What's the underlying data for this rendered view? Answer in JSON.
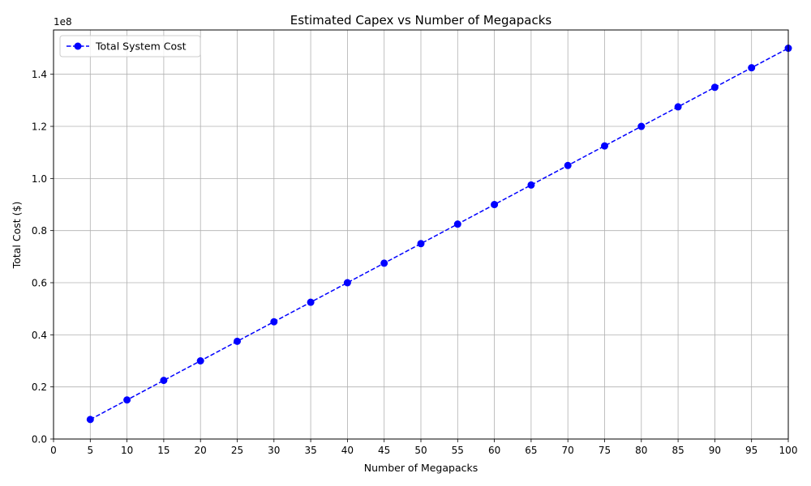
{
  "chart_data": {
    "type": "line",
    "title": "Estimated Capex vs Number of Megapacks",
    "xlabel": "Number of Megapacks",
    "ylabel": "Total Cost ($)",
    "y_offset_label": "1e8",
    "xlim": [
      0,
      100
    ],
    "ylim": [
      0,
      157000000
    ],
    "x_ticks": [
      0,
      5,
      10,
      15,
      20,
      25,
      30,
      35,
      40,
      45,
      50,
      55,
      60,
      65,
      70,
      75,
      80,
      85,
      90,
      95,
      100
    ],
    "x_tick_labels": [
      "0",
      "5",
      "10",
      "15",
      "20",
      "25",
      "30",
      "35",
      "40",
      "45",
      "50",
      "55",
      "60",
      "65",
      "70",
      "75",
      "80",
      "85",
      "90",
      "95",
      "100"
    ],
    "y_ticks": [
      0,
      20000000,
      40000000,
      60000000,
      80000000,
      100000000,
      120000000,
      140000000
    ],
    "y_tick_labels": [
      "0.0",
      "0.2",
      "0.4",
      "0.6",
      "0.8",
      "1.0",
      "1.2",
      "1.4"
    ],
    "grid": true,
    "legend_position": "upper-left",
    "series": [
      {
        "name": "Total System Cost",
        "color": "#0000ff",
        "line_style": "dashed",
        "marker": "circle",
        "x": [
          5,
          10,
          15,
          20,
          25,
          30,
          35,
          40,
          45,
          50,
          55,
          60,
          65,
          70,
          75,
          80,
          85,
          90,
          95,
          100
        ],
        "values": [
          7500000,
          15000000,
          22500000,
          30000000,
          37500000,
          45000000,
          52500000,
          60000000,
          67500000,
          75000000,
          82500000,
          90000000,
          97500000,
          105000000,
          112500000,
          120000000,
          127500000,
          135000000,
          142500000,
          150000000
        ]
      }
    ]
  }
}
